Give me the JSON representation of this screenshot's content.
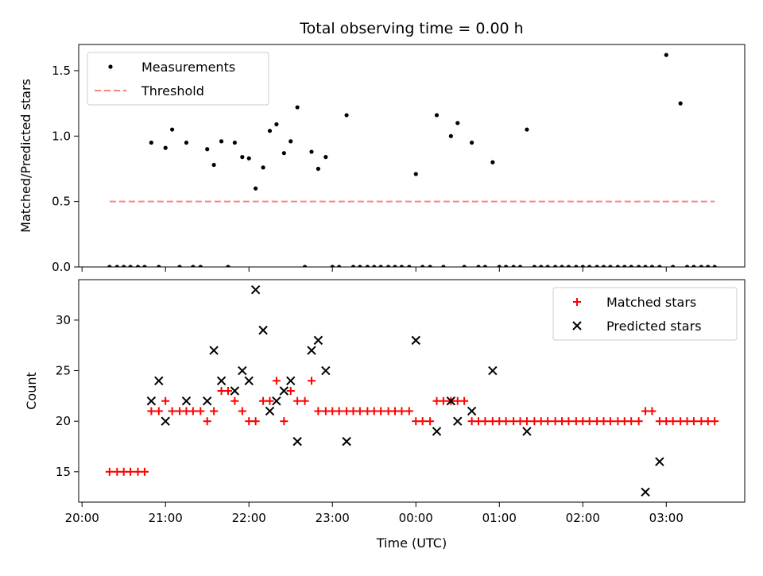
{
  "title": "Total observing time = 0.00 h",
  "colors": {
    "threshold": "#ff8080",
    "matched": "#ff0000",
    "predicted": "#000000",
    "measurement": "#000000"
  },
  "chart_data": [
    {
      "type": "scatter",
      "ylabel": "Matched/Predicted stars",
      "xlabel": "",
      "ylim": [
        0,
        1.7
      ],
      "y_ticks": [
        "0.0",
        "0.5",
        "1.0",
        "1.5"
      ],
      "y_tick_values": [
        0,
        0.5,
        1.0,
        1.5
      ],
      "legend_position": "upper-left",
      "series": [
        {
          "name": "Measurements",
          "x": [
            20.33,
            20.42,
            20.5,
            20.58,
            20.67,
            20.75,
            20.83,
            20.92,
            21.0,
            21.08,
            21.17,
            21.25,
            21.33,
            21.42,
            21.5,
            21.58,
            21.67,
            21.75,
            21.83,
            21.92,
            22.0,
            22.08,
            22.17,
            22.25,
            22.33,
            22.42,
            22.5,
            22.58,
            22.67,
            22.75,
            22.83,
            22.92,
            23.0,
            23.08,
            23.17,
            23.25,
            23.33,
            23.42,
            23.5,
            23.58,
            23.67,
            23.75,
            23.83,
            23.92,
            24.0,
            24.08,
            24.17,
            24.25,
            24.33,
            24.42,
            24.5,
            24.58,
            24.67,
            24.75,
            24.83,
            24.92,
            25.0,
            25.08,
            25.17,
            25.25,
            25.33,
            25.42,
            25.5,
            25.58,
            25.67,
            25.75,
            25.83,
            25.92,
            26.0,
            26.08,
            26.17,
            26.25,
            26.33,
            26.42,
            26.5,
            26.58,
            26.67,
            26.75,
            26.83,
            26.92,
            27.0,
            27.08,
            27.17,
            27.25,
            27.33,
            27.42,
            27.5,
            27.58
          ],
          "y": [
            0,
            0,
            0,
            0,
            0,
            0,
            0.95,
            0,
            0.91,
            1.05,
            0,
            0.95,
            0,
            0,
            0.9,
            0.78,
            0.96,
            0,
            0.95,
            0.84,
            0.83,
            0.6,
            0.76,
            1.04,
            1.09,
            0.87,
            0.96,
            1.22,
            0,
            0.88,
            0.75,
            0.84,
            0,
            0,
            1.16,
            0,
            0,
            0,
            0,
            0,
            0,
            0,
            0,
            0,
            0.71,
            0,
            0,
            1.16,
            0,
            1.0,
            1.1,
            0,
            0.95,
            0,
            0,
            0.8,
            0,
            0,
            0,
            0,
            1.05,
            0,
            0,
            0,
            0,
            0,
            0,
            0,
            0,
            0,
            0,
            0,
            0,
            0,
            0,
            0,
            0,
            0,
            0,
            0,
            1.62,
            0,
            1.25,
            0,
            0,
            0,
            0,
            0
          ]
        },
        {
          "name": "Threshold",
          "x": [
            20.33,
            27.58
          ],
          "y": [
            0.5,
            0.5
          ]
        }
      ]
    },
    {
      "type": "scatter",
      "ylabel": "Count",
      "xlabel": "Time (UTC)",
      "ylim": [
        12,
        34
      ],
      "y_ticks": [
        "15",
        "20",
        "25",
        "30"
      ],
      "y_tick_values": [
        15,
        20,
        25,
        30
      ],
      "x_ticks": [
        "20:00",
        "21:00",
        "22:00",
        "23:00",
        "00:00",
        "01:00",
        "02:00",
        "03:00"
      ],
      "x_tick_values": [
        20,
        21,
        22,
        23,
        24,
        25,
        26,
        27
      ],
      "xlim": [
        19.96,
        27.94
      ],
      "legend_position": "upper-right",
      "series": [
        {
          "name": "Matched stars",
          "x": [
            20.33,
            20.42,
            20.5,
            20.58,
            20.67,
            20.75,
            20.83,
            20.92,
            21.0,
            21.08,
            21.17,
            21.25,
            21.33,
            21.42,
            21.5,
            21.58,
            21.67,
            21.75,
            21.83,
            21.92,
            22.0,
            22.08,
            22.17,
            22.25,
            22.33,
            22.42,
            22.5,
            22.58,
            22.67,
            22.75,
            22.83,
            22.92,
            23.0,
            23.08,
            23.17,
            23.25,
            23.33,
            23.42,
            23.5,
            23.58,
            23.67,
            23.75,
            23.83,
            23.92,
            24.0,
            24.08,
            24.17,
            24.25,
            24.33,
            24.42,
            24.5,
            24.58,
            24.67,
            24.75,
            24.83,
            24.92,
            25.0,
            25.08,
            25.17,
            25.25,
            25.33,
            25.42,
            25.5,
            25.58,
            25.67,
            25.75,
            25.83,
            25.92,
            26.0,
            26.08,
            26.17,
            26.25,
            26.33,
            26.42,
            26.5,
            26.58,
            26.67,
            26.75,
            26.83,
            26.92,
            27.0,
            27.08,
            27.17,
            27.25,
            27.33,
            27.42,
            27.5,
            27.58
          ],
          "y": [
            15,
            15,
            15,
            15,
            15,
            15,
            21,
            21,
            22,
            21,
            21,
            21,
            21,
            21,
            20,
            21,
            23,
            23,
            22,
            21,
            20,
            20,
            22,
            22,
            24,
            20,
            23,
            22,
            22,
            24,
            21,
            21,
            21,
            21,
            21,
            21,
            21,
            21,
            21,
            21,
            21,
            21,
            21,
            21,
            20,
            20,
            20,
            22,
            22,
            22,
            22,
            22,
            20,
            20,
            20,
            20,
            20,
            20,
            20,
            20,
            20,
            20,
            20,
            20,
            20,
            20,
            20,
            20,
            20,
            20,
            20,
            20,
            20,
            20,
            20,
            20,
            20,
            21,
            21,
            20,
            20,
            20,
            20,
            20,
            20,
            20,
            20,
            20
          ]
        },
        {
          "name": "Predicted stars",
          "x": [
            20.83,
            20.92,
            21.0,
            21.25,
            21.5,
            21.58,
            21.67,
            21.83,
            21.92,
            22.0,
            22.08,
            22.17,
            22.25,
            22.33,
            22.42,
            22.5,
            22.58,
            22.75,
            22.83,
            22.92,
            23.17,
            24.0,
            24.25,
            24.42,
            24.5,
            24.67,
            24.92,
            25.33,
            26.75,
            26.92
          ],
          "y": [
            22,
            24,
            20,
            22,
            22,
            27,
            24,
            23,
            25,
            24,
            33,
            29,
            21,
            22,
            23,
            24,
            18,
            27,
            28,
            25,
            18,
            28,
            19,
            22,
            20,
            21,
            25,
            19,
            13,
            16
          ]
        }
      ]
    }
  ]
}
